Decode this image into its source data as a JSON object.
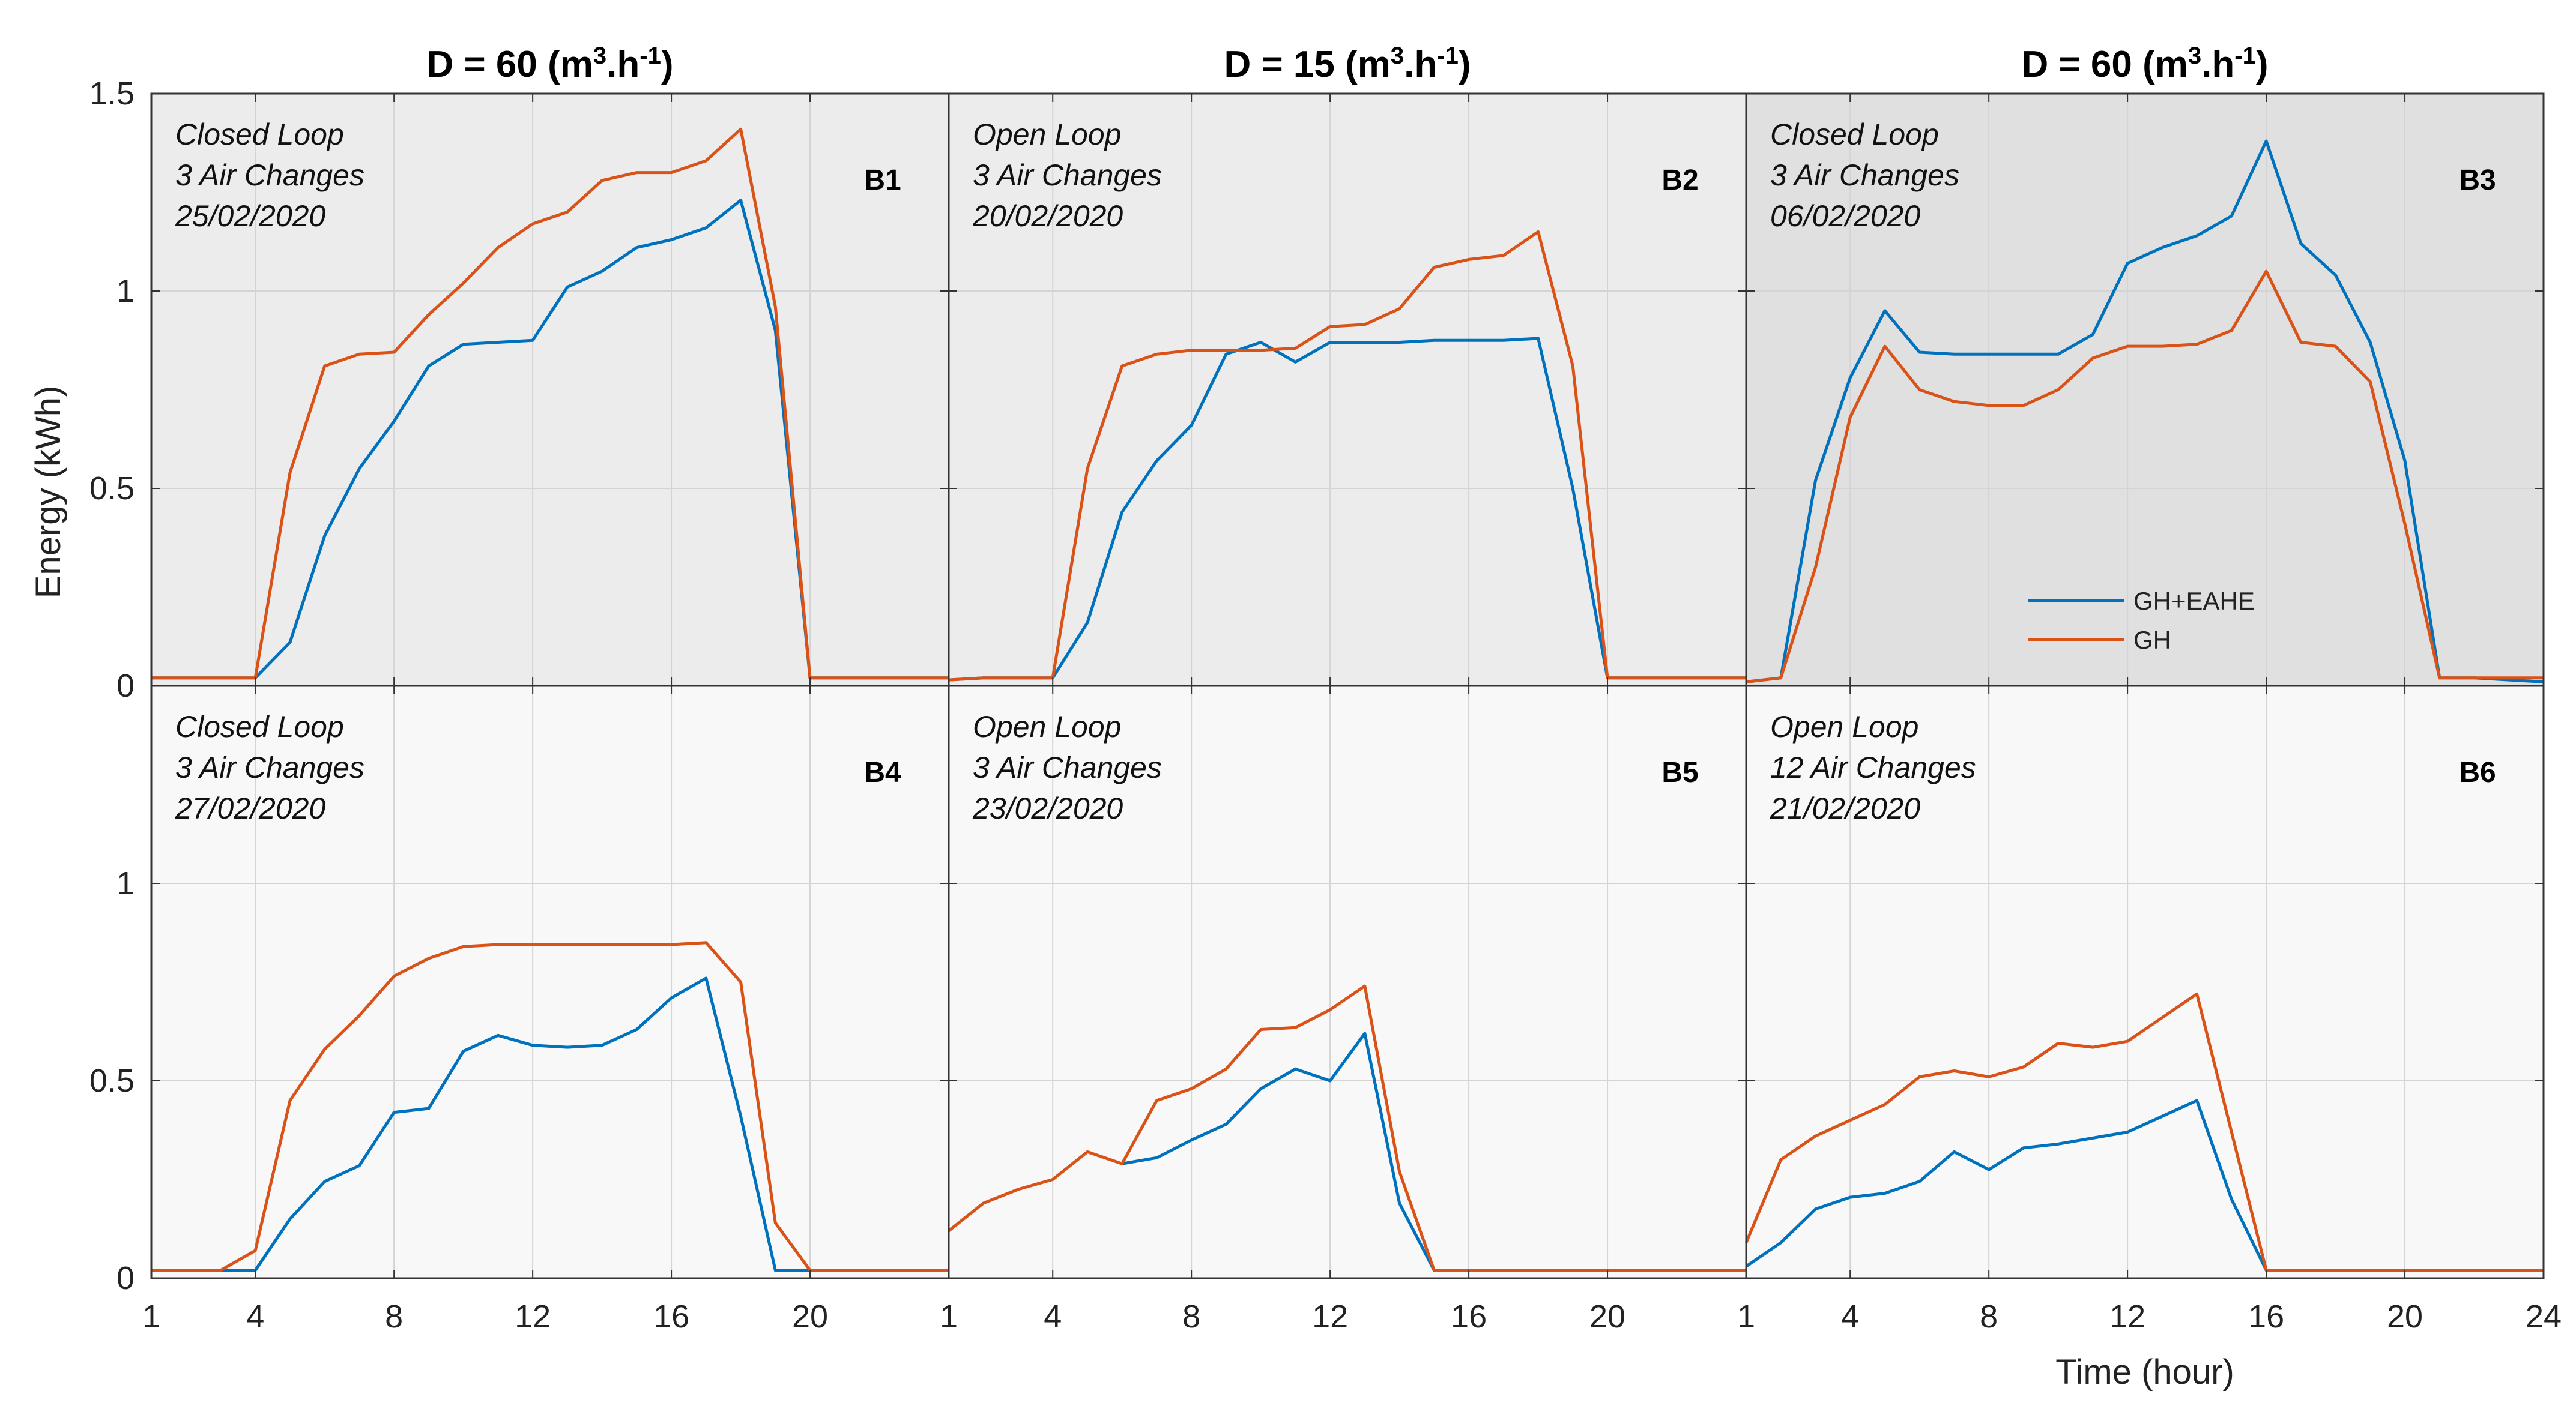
{
  "chart_data": {
    "type": "line",
    "ylabel": "Energy (kWh)",
    "xlabel": "Time (hour)",
    "xlim": [
      1,
      24
    ],
    "ylim": [
      0,
      1.5
    ],
    "x_ticks": [
      "1",
      "4",
      "8",
      "12",
      "16",
      "20"
    ],
    "x_ticks_last": [
      "1",
      "4",
      "8",
      "12",
      "16",
      "20",
      "24"
    ],
    "y_ticks_top": [
      "0",
      "0.5",
      "1",
      "1.5"
    ],
    "y_ticks_bottom": [
      "0",
      "0.5",
      "1"
    ],
    "column_titles": [
      {
        "main": "D = 60 (m",
        "sup1": "3",
        "mid": ".h",
        "sup2": "-1",
        "end": ")"
      },
      {
        "main": "D = 15 (m",
        "sup1": "3",
        "mid": ".h",
        "sup2": "-1",
        "end": ")"
      },
      {
        "main": "D = 60 (m",
        "sup1": "3",
        "mid": ".h",
        "sup2": "-1",
        "end": ")"
      }
    ],
    "legend": [
      {
        "name": "GH+EAHE",
        "color": "#0072bd"
      },
      {
        "name": "GH",
        "color": "#d95319"
      }
    ],
    "x": [
      1,
      2,
      3,
      4,
      5,
      6,
      7,
      8,
      9,
      10,
      11,
      12,
      13,
      14,
      15,
      16,
      17,
      18,
      19,
      20,
      21,
      22,
      23,
      24
    ],
    "panels": [
      {
        "label": "B1",
        "ann": [
          "Closed Loop",
          "3 Air Changes",
          "25/02/2020"
        ],
        "bg": "#ececec",
        "series": [
          {
            "name": "GH+EAHE",
            "values": [
              0.02,
              0.02,
              0.02,
              0.02,
              0.11,
              0.38,
              0.55,
              0.67,
              0.81,
              0.865,
              0.87,
              0.875,
              1.01,
              1.05,
              1.11,
              1.13,
              1.16,
              1.23,
              0.9,
              0.02,
              0.02,
              0.02,
              0.02,
              0.02
            ]
          },
          {
            "name": "GH",
            "values": [
              0.02,
              0.02,
              0.02,
              0.02,
              0.54,
              0.81,
              0.84,
              0.845,
              0.94,
              1.02,
              1.11,
              1.17,
              1.2,
              1.28,
              1.3,
              1.3,
              1.33,
              1.41,
              0.96,
              0.02,
              0.02,
              0.02,
              0.02,
              0.02
            ]
          }
        ]
      },
      {
        "label": "B2",
        "ann": [
          "Open Loop",
          "3 Air Changes",
          "20/02/2020"
        ],
        "bg": "#ececec",
        "series": [
          {
            "name": "GH+EAHE",
            "values": [
              0.015,
              0.02,
              0.02,
              0.02,
              0.16,
              0.44,
              0.57,
              0.66,
              0.84,
              0.87,
              0.82,
              0.87,
              0.87,
              0.87,
              0.875,
              0.875,
              0.875,
              0.88,
              0.5,
              0.02,
              0.02,
              0.02,
              0.02,
              0.02
            ]
          },
          {
            "name": "GH",
            "values": [
              0.015,
              0.02,
              0.02,
              0.02,
              0.55,
              0.81,
              0.84,
              0.85,
              0.85,
              0.85,
              0.855,
              0.91,
              0.915,
              0.955,
              1.06,
              1.08,
              1.09,
              1.15,
              0.81,
              0.02,
              0.02,
              0.02,
              0.02,
              0.02
            ]
          }
        ]
      },
      {
        "label": "B3",
        "ann": [
          "Closed Loop",
          "3 Air Changes",
          "06/02/2020"
        ],
        "bg": "#e0e0e0",
        "legend": true,
        "series": [
          {
            "name": "GH+EAHE",
            "values": [
              0.01,
              0.02,
              0.52,
              0.78,
              0.95,
              0.845,
              0.84,
              0.84,
              0.84,
              0.84,
              0.89,
              1.07,
              1.11,
              1.14,
              1.19,
              1.38,
              1.12,
              1.04,
              0.87,
              0.57,
              0.02,
              0.02,
              0.015,
              0.01
            ]
          },
          {
            "name": "GH",
            "values": [
              0.01,
              0.02,
              0.3,
              0.68,
              0.86,
              0.75,
              0.72,
              0.71,
              0.71,
              0.75,
              0.83,
              0.86,
              0.86,
              0.865,
              0.9,
              1.05,
              0.87,
              0.86,
              0.77,
              0.41,
              0.02,
              0.02,
              0.02,
              0.02
            ]
          }
        ]
      },
      {
        "label": "B4",
        "ann": [
          "Closed Loop",
          "3 Air Changes",
          "27/02/2020"
        ],
        "bg": "#f8f8f8",
        "series": [
          {
            "name": "GH+EAHE",
            "values": [
              0.02,
              0.02,
              0.02,
              0.02,
              0.15,
              0.245,
              0.285,
              0.42,
              0.43,
              0.575,
              0.615,
              0.59,
              0.585,
              0.59,
              0.63,
              0.71,
              0.76,
              0.41,
              0.02,
              0.02,
              null,
              null,
              null,
              null
            ]
          },
          {
            "name": "GH",
            "values": [
              0.02,
              0.02,
              0.02,
              0.07,
              0.45,
              0.58,
              0.665,
              0.765,
              0.81,
              0.84,
              0.845,
              0.845,
              0.845,
              0.845,
              0.845,
              0.845,
              0.85,
              0.75,
              0.14,
              0.02,
              0.02,
              0.02,
              0.02,
              0.02
            ]
          }
        ]
      },
      {
        "label": "B5",
        "ann": [
          "Open Loop",
          "3 Air Changes",
          "23/02/2020"
        ],
        "bg": "#f8f8f8",
        "series": [
          {
            "name": "GH+EAHE",
            "values": [
              null,
              null,
              null,
              null,
              null,
              0.29,
              0.305,
              0.35,
              0.39,
              0.48,
              0.53,
              0.5,
              0.62,
              0.19,
              0.02,
              0.02,
              0.02,
              0.02,
              0.02,
              0.02,
              0.02,
              0.02,
              0.02,
              0.02
            ]
          },
          {
            "name": "GH",
            "values": [
              0.12,
              0.19,
              0.225,
              0.25,
              0.32,
              0.29,
              0.45,
              0.48,
              0.53,
              0.63,
              0.635,
              0.68,
              0.74,
              0.27,
              0.02,
              0.02,
              0.02,
              0.02,
              0.02,
              0.02,
              0.02,
              0.02,
              0.02,
              0.02
            ]
          }
        ]
      },
      {
        "label": "B6",
        "ann": [
          "Open Loop",
          "12 Air Changes",
          "21/02/2020"
        ],
        "bg": "#f8f8f8",
        "series": [
          {
            "name": "GH+EAHE",
            "values": [
              0.03,
              0.09,
              0.175,
              0.205,
              0.215,
              0.245,
              0.32,
              0.275,
              0.33,
              0.34,
              0.355,
              0.37,
              0.41,
              0.45,
              0.2,
              0.02,
              0.02,
              0.02,
              0.02,
              0.02,
              0.02,
              0.02,
              0.02,
              0.02
            ]
          },
          {
            "name": "GH",
            "values": [
              0.09,
              0.3,
              0.36,
              0.4,
              0.44,
              0.51,
              0.525,
              0.51,
              0.535,
              0.595,
              0.585,
              0.6,
              0.66,
              0.72,
              0.37,
              0.02,
              0.02,
              0.02,
              0.02,
              0.02,
              0.02,
              0.02,
              0.02,
              0.02
            ]
          }
        ]
      }
    ]
  }
}
